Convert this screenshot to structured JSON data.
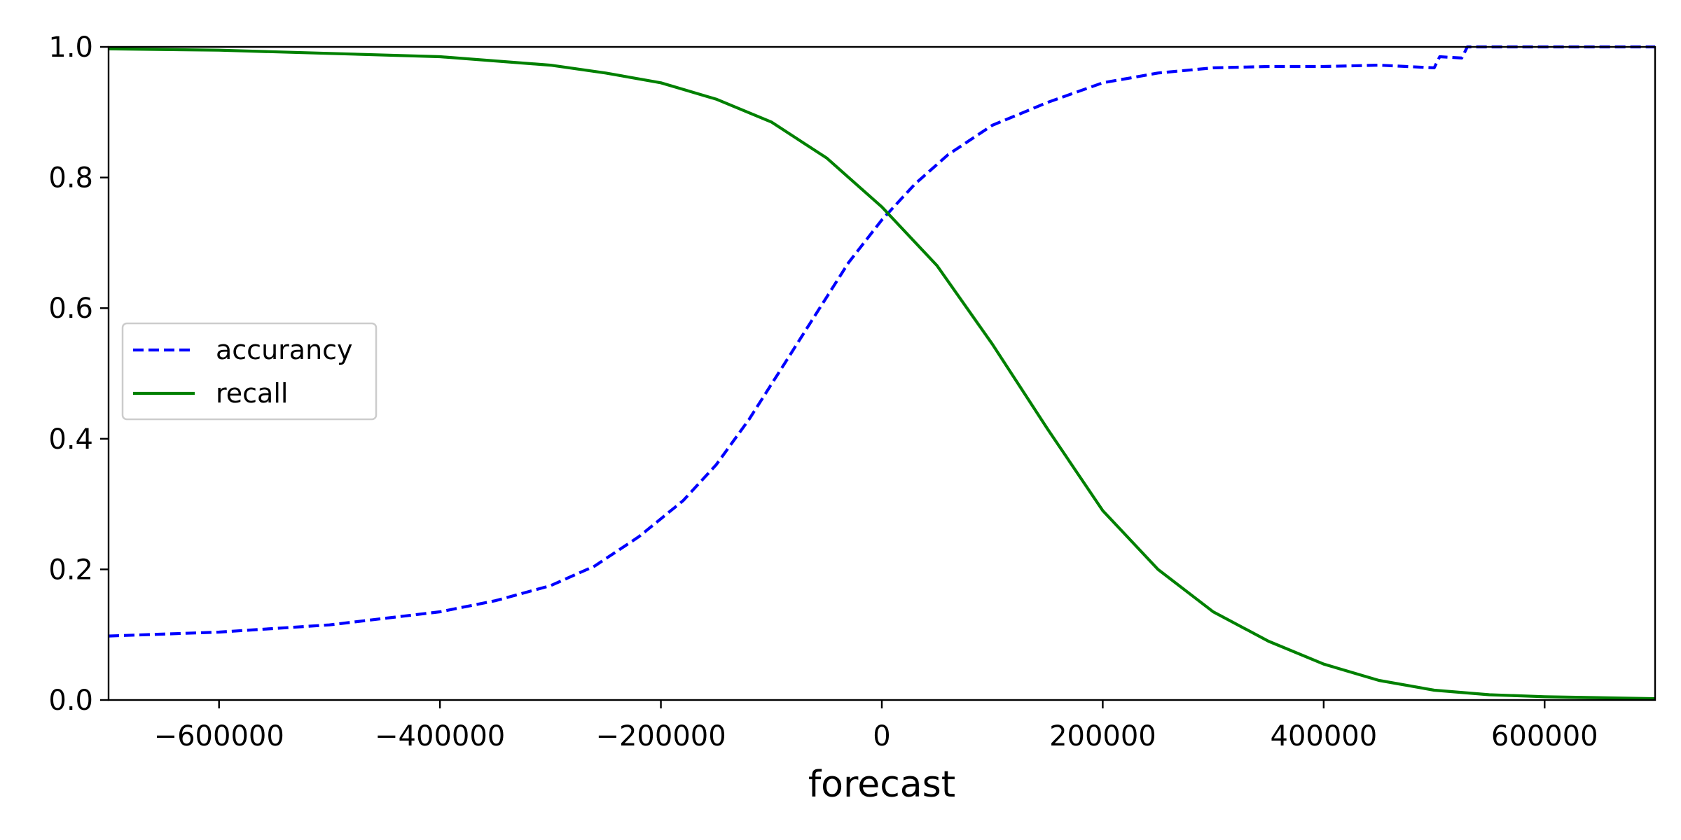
{
  "chart_data": {
    "type": "line",
    "title": "",
    "xlabel": "forecast",
    "ylabel": "",
    "xlim": [
      -700000,
      700000
    ],
    "ylim": [
      0.0,
      1.0
    ],
    "grid": false,
    "legend_position": "center-left",
    "x_ticks": [
      -600000,
      -400000,
      -200000,
      0,
      200000,
      400000,
      600000
    ],
    "x_tick_labels": [
      "−600000",
      "−400000",
      "−200000",
      "0",
      "200000",
      "400000",
      "600000"
    ],
    "y_ticks": [
      0.0,
      0.2,
      0.4,
      0.6,
      0.8,
      1.0
    ],
    "y_tick_labels": [
      "0.0",
      "0.2",
      "0.4",
      "0.6",
      "0.8",
      "1.0"
    ],
    "series": [
      {
        "name": "accurancy",
        "color": "#0000ff",
        "style": "dashed",
        "points": [
          [
            -700000,
            0.098
          ],
          [
            -600000,
            0.104
          ],
          [
            -500000,
            0.115
          ],
          [
            -400000,
            0.135
          ],
          [
            -350000,
            0.152
          ],
          [
            -300000,
            0.175
          ],
          [
            -260000,
            0.205
          ],
          [
            -220000,
            0.25
          ],
          [
            -180000,
            0.305
          ],
          [
            -150000,
            0.36
          ],
          [
            -120000,
            0.43
          ],
          [
            -90000,
            0.51
          ],
          [
            -60000,
            0.59
          ],
          [
            -30000,
            0.67
          ],
          [
            0,
            0.735
          ],
          [
            30000,
            0.79
          ],
          [
            60000,
            0.835
          ],
          [
            100000,
            0.88
          ],
          [
            150000,
            0.915
          ],
          [
            200000,
            0.945
          ],
          [
            250000,
            0.96
          ],
          [
            300000,
            0.968
          ],
          [
            350000,
            0.97
          ],
          [
            400000,
            0.97
          ],
          [
            450000,
            0.972
          ],
          [
            500000,
            0.968
          ],
          [
            505000,
            0.985
          ],
          [
            525000,
            0.983
          ],
          [
            530000,
            1.0
          ],
          [
            700000,
            1.0
          ]
        ]
      },
      {
        "name": "recall",
        "color": "#008000",
        "style": "solid",
        "points": [
          [
            -700000,
            0.997
          ],
          [
            -600000,
            0.995
          ],
          [
            -500000,
            0.99
          ],
          [
            -400000,
            0.985
          ],
          [
            -300000,
            0.972
          ],
          [
            -250000,
            0.96
          ],
          [
            -200000,
            0.945
          ],
          [
            -150000,
            0.92
          ],
          [
            -100000,
            0.885
          ],
          [
            -50000,
            0.83
          ],
          [
            0,
            0.755
          ],
          [
            50000,
            0.665
          ],
          [
            100000,
            0.545
          ],
          [
            150000,
            0.415
          ],
          [
            200000,
            0.29
          ],
          [
            250000,
            0.2
          ],
          [
            300000,
            0.135
          ],
          [
            350000,
            0.09
          ],
          [
            400000,
            0.055
          ],
          [
            450000,
            0.03
          ],
          [
            500000,
            0.015
          ],
          [
            550000,
            0.008
          ],
          [
            600000,
            0.005
          ],
          [
            700000,
            0.002
          ]
        ]
      }
    ]
  }
}
